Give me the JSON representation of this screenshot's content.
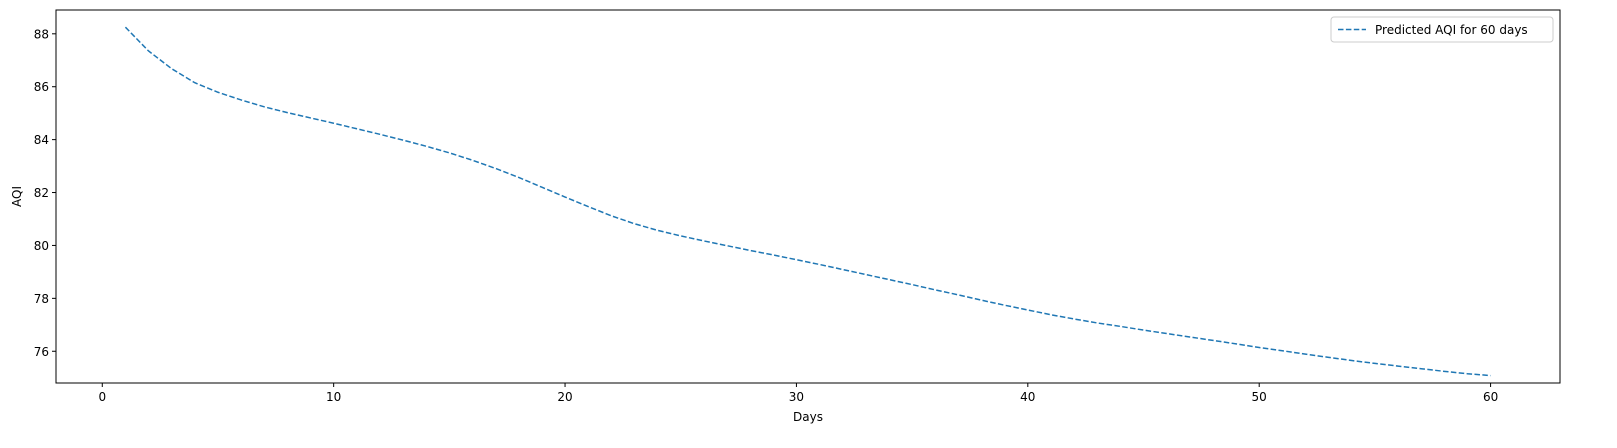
{
  "chart_data": {
    "type": "line",
    "title": "",
    "xlabel": "Days",
    "ylabel": "AQI",
    "xlim": [
      -2.0,
      63.0
    ],
    "ylim": [
      74.8,
      88.9
    ],
    "xticks": [
      0,
      10,
      20,
      30,
      40,
      50,
      60
    ],
    "yticks": [
      76,
      78,
      80,
      82,
      84,
      86,
      88
    ],
    "grid": false,
    "legend_position": "top-right",
    "series": [
      {
        "name": "Predicted AQI for 60 days",
        "color": "#1f77b4",
        "linestyle": "dashed",
        "x": [
          1,
          2,
          3,
          4,
          5,
          6,
          7,
          8,
          9,
          10,
          11,
          12,
          13,
          14,
          15,
          16,
          17,
          18,
          19,
          20,
          21,
          22,
          23,
          24,
          25,
          26,
          27,
          28,
          29,
          30,
          31,
          32,
          33,
          34,
          35,
          36,
          37,
          38,
          39,
          40,
          41,
          42,
          43,
          44,
          45,
          46,
          47,
          48,
          49,
          50,
          51,
          52,
          53,
          54,
          55,
          56,
          57,
          58,
          59,
          60
        ],
        "y": [
          88.25,
          87.35,
          86.68,
          86.15,
          85.79,
          85.5,
          85.24,
          85.02,
          84.82,
          84.62,
          84.41,
          84.2,
          83.98,
          83.75,
          83.5,
          83.22,
          82.91,
          82.57,
          82.2,
          81.83,
          81.47,
          81.12,
          80.82,
          80.57,
          80.36,
          80.17,
          79.99,
          79.81,
          79.64,
          79.46,
          79.28,
          79.09,
          78.9,
          78.71,
          78.52,
          78.32,
          78.13,
          77.93,
          77.74,
          77.56,
          77.38,
          77.22,
          77.07,
          76.94,
          76.8,
          76.67,
          76.54,
          76.41,
          76.28,
          76.14,
          76.02,
          75.89,
          75.77,
          75.65,
          75.54,
          75.44,
          75.34,
          75.24,
          75.15,
          75.08
        ]
      }
    ]
  }
}
